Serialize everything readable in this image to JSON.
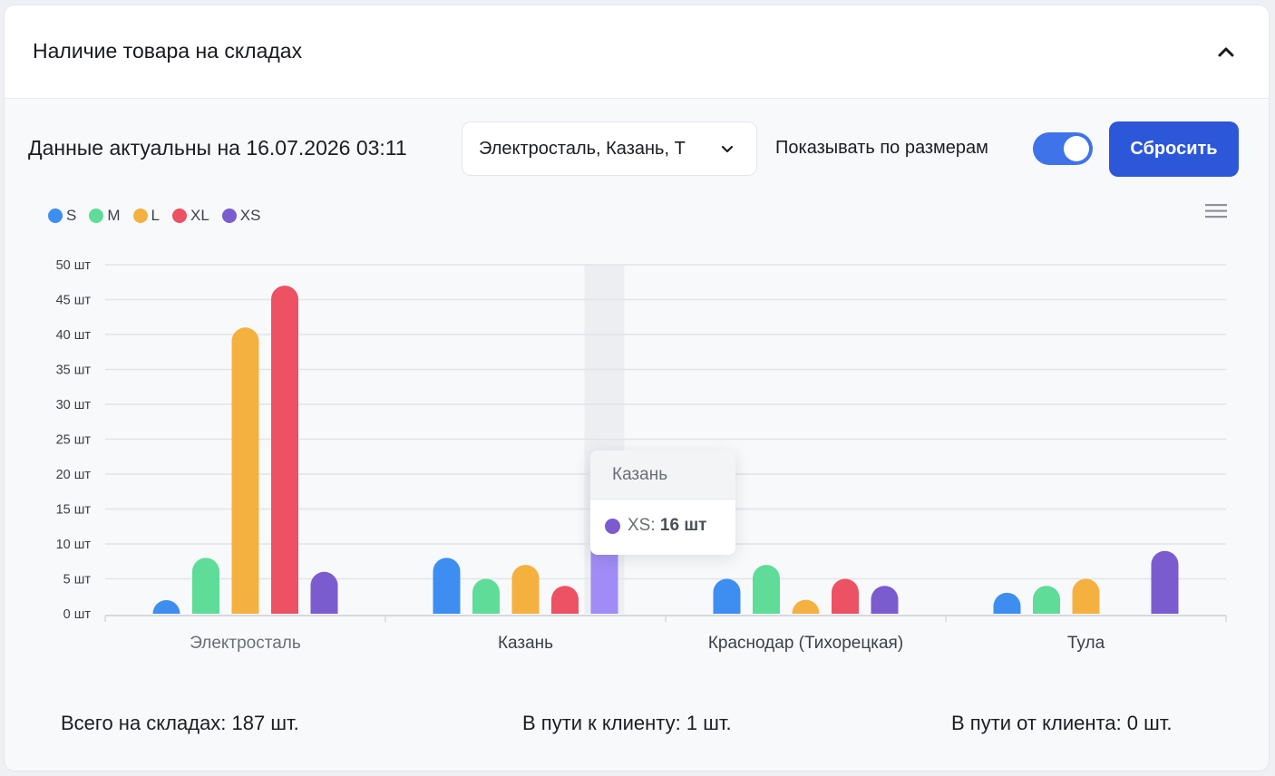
{
  "header": {
    "title": "Наличие товара на складах"
  },
  "toolbar": {
    "updated_text": "Данные актуальны на 16.07.2026 03:11",
    "warehouse_select_value": "Электросталь, Казань, Т",
    "toggle_label": "Показывать по размерам",
    "toggle_on": true,
    "reset_label": "Сбросить"
  },
  "tooltip": {
    "title": "Казань",
    "series": "XS",
    "value_label": "16 шт",
    "color": "#7a5ccf"
  },
  "stats": {
    "total": "Всего на складах: 187 шт.",
    "to_client": "В пути к клиенту: 1 шт.",
    "from_client": "В пути от клиента: 0 шт."
  },
  "chart_data": {
    "type": "bar",
    "categories": [
      "Электросталь",
      "Казань",
      "Краснодар (Тихорецкая)",
      "Тула"
    ],
    "series": [
      {
        "name": "S",
        "color": "#3d8ef0",
        "values": [
          1,
          8,
          5,
          3
        ]
      },
      {
        "name": "M",
        "color": "#5fdc98",
        "values": [
          8,
          5,
          7,
          4
        ]
      },
      {
        "name": "L",
        "color": "#f5b13f",
        "values": [
          41,
          7,
          2,
          5
        ]
      },
      {
        "name": "XL",
        "color": "#ec5263",
        "values": [
          47,
          4,
          5,
          0
        ]
      },
      {
        "name": "XS",
        "color": "#7a5ccf",
        "values": [
          6,
          16,
          4,
          9
        ]
      }
    ],
    "y_ticks": [
      "0 шт",
      "5 шт",
      "10 шт",
      "15 шт",
      "20 шт",
      "25 шт",
      "30 шт",
      "35 шт",
      "40 шт",
      "45 шт",
      "50 шт"
    ],
    "ylim": [
      0,
      50
    ],
    "grid": true,
    "legend_position": "top-left",
    "highlighted": {
      "category": "Казань",
      "series": "XS",
      "color": "#a08cf4"
    }
  }
}
